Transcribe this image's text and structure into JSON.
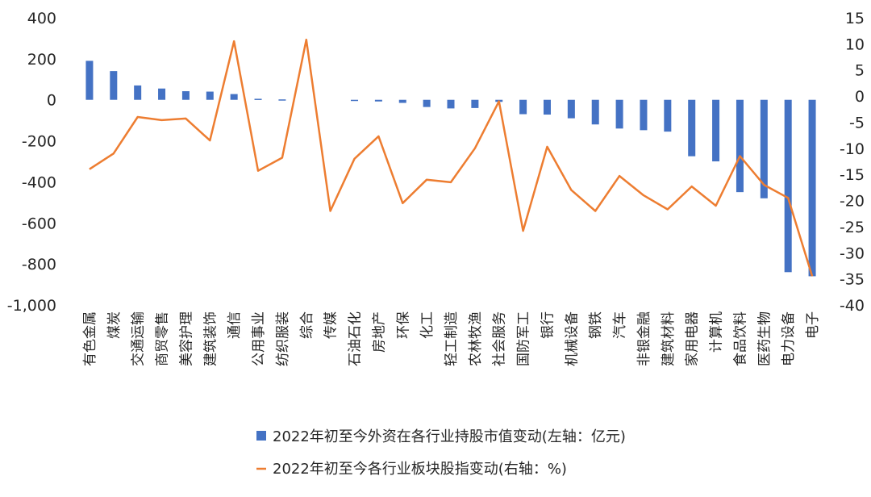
{
  "chart_data": {
    "type": "bar+line",
    "title": "",
    "categories": [
      "有色金属",
      "煤炭",
      "交通运输",
      "商贸零售",
      "美容护理",
      "建筑装饰",
      "通信",
      "公用事业",
      "纺织服装",
      "综合",
      "传媒",
      "石油石化",
      "房地产",
      "环保",
      "化工",
      "轻工制造",
      "农林牧渔",
      "社会服务",
      "国防军工",
      "银行",
      "机械设备",
      "钢铁",
      "汽车",
      "非银金融",
      "建筑材料",
      "家用电器",
      "计算机",
      "食品饮料",
      "医药生物",
      "电力设备",
      "电子"
    ],
    "series": [
      {
        "name": "2022年初至今外资在各行业持股市值变动(左轴：亿元)",
        "type": "bar",
        "axis": "left",
        "color": "#4472C4",
        "values": [
          190,
          140,
          70,
          55,
          42,
          40,
          28,
          5,
          2,
          0,
          0,
          -5,
          -8,
          -15,
          -35,
          -42,
          -40,
          -10,
          -70,
          -72,
          -90,
          -120,
          -140,
          -148,
          -155,
          -275,
          -300,
          -450,
          -480,
          -840,
          -860
        ]
      },
      {
        "name": "2022年初至今各行业板块股指变动(右轴：%)",
        "type": "line",
        "axis": "right",
        "color": "#ED7D31",
        "values": [
          -14,
          -11,
          -4,
          -4.6,
          -4.3,
          -8.5,
          10.5,
          -14.3,
          -11.8,
          10.8,
          -22,
          -12,
          -7.7,
          -20.5,
          -16,
          -16.5,
          -10,
          -1,
          -25.8,
          -9.7,
          -18,
          -22,
          -15.3,
          -19,
          -21.7,
          -17.3,
          -21,
          -11.5,
          -17,
          -19.5,
          -34.5
        ]
      }
    ],
    "y_left": {
      "min": -1000,
      "max": 400,
      "step": 200,
      "tick_labels": [
        "-1,000",
        "-800",
        "-600",
        "-400",
        "-200",
        "0",
        "200",
        "400"
      ]
    },
    "y_right": {
      "min": -40,
      "max": 15,
      "step": 5,
      "tick_labels": [
        "-40",
        "-35",
        "-30",
        "-25",
        "-20",
        "-15",
        "-10",
        "-5",
        "0",
        "5",
        "10",
        "15"
      ]
    },
    "grid": false,
    "legend_position": "bottom"
  }
}
